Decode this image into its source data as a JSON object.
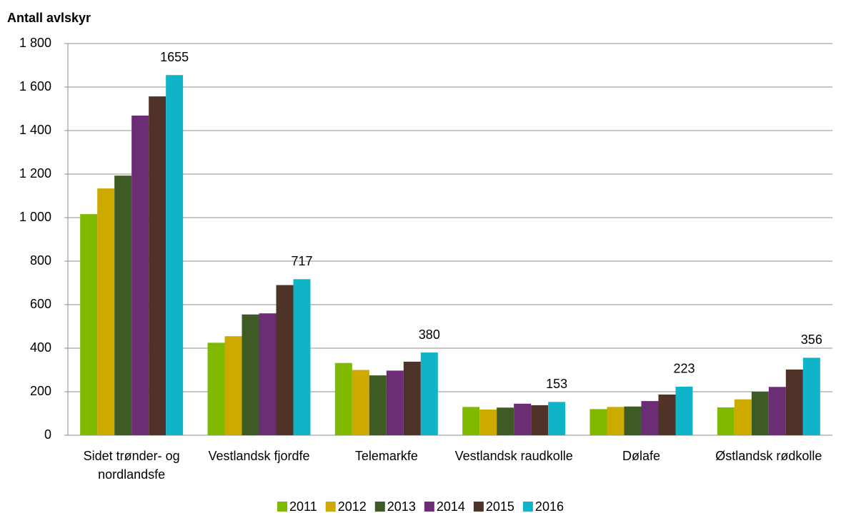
{
  "chart_data": {
    "type": "bar",
    "title": "Antall avlskyr",
    "categories": [
      "Sidet trønder- og nordlandsfe",
      "Vestlandsk fjordfe",
      "Telemarkfe",
      "Vestlandsk raudkolle",
      "Dølafe",
      "Østlandsk rødkolle"
    ],
    "series": [
      {
        "name": "2011",
        "color": "#7fba00",
        "values": [
          1016,
          425,
          332,
          130,
          120,
          128
        ]
      },
      {
        "name": "2012",
        "color": "#ccaa00",
        "values": [
          1134,
          455,
          300,
          118,
          130,
          165
        ]
      },
      {
        "name": "2013",
        "color": "#3e5a25",
        "values": [
          1193,
          555,
          275,
          127,
          132,
          200
        ]
      },
      {
        "name": "2014",
        "color": "#6b2d74",
        "values": [
          1469,
          560,
          297,
          145,
          157,
          222
        ]
      },
      {
        "name": "2015",
        "color": "#4f3228",
        "values": [
          1557,
          690,
          338,
          138,
          187,
          302
        ]
      },
      {
        "name": "2016",
        "color": "#10b4c8",
        "values": [
          1655,
          717,
          380,
          153,
          223,
          356
        ],
        "show_values": true
      }
    ],
    "ylim": [
      0,
      1800
    ],
    "yticks": [
      0,
      200,
      400,
      600,
      800,
      {
        "value": 1000,
        "label": "1 000"
      },
      {
        "value": 1200,
        "label": "1 200"
      },
      {
        "value": 1400,
        "label": "1 400"
      },
      {
        "value": 1600,
        "label": "1 600"
      },
      {
        "value": 1800,
        "label": "1 800"
      }
    ],
    "grid": true,
    "legend": "bottom"
  }
}
